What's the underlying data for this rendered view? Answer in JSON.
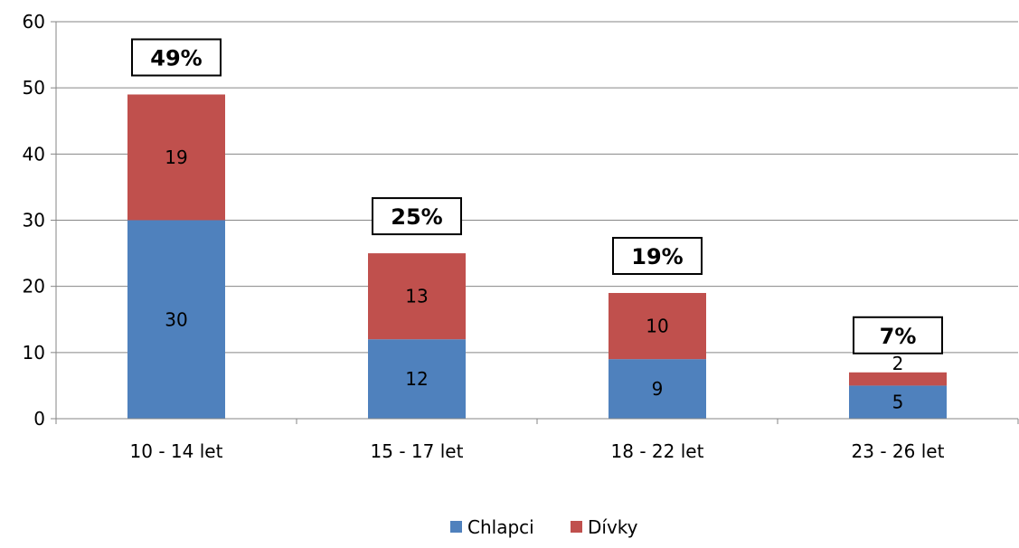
{
  "chart_data": {
    "type": "bar",
    "stacked": true,
    "categories": [
      "10 - 14 let",
      "15 - 17 let",
      "18 - 22 let",
      "23 - 26 let"
    ],
    "series": [
      {
        "name": "Chlapci",
        "values": [
          30,
          12,
          9,
          5
        ],
        "color": "#4F81BD"
      },
      {
        "name": "Dívky",
        "values": [
          19,
          13,
          10,
          2
        ],
        "color": "#C0504D"
      }
    ],
    "percent_labels": [
      "49%",
      "25%",
      "19%",
      "7%"
    ],
    "ylim": [
      0,
      60
    ],
    "yticks": [
      0,
      10,
      20,
      30,
      40,
      50,
      60
    ],
    "grid": true,
    "legend": "bottom"
  }
}
